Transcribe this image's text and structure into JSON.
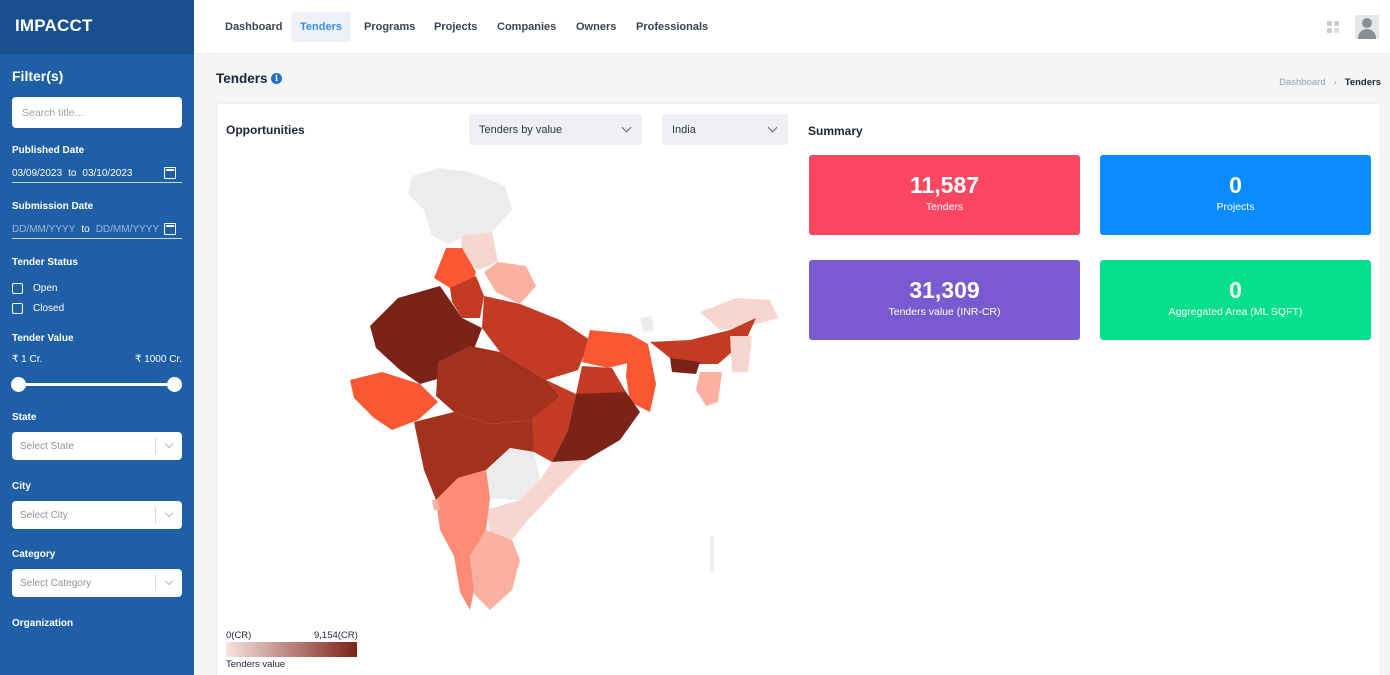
{
  "app": {
    "title": "IMPACCT"
  },
  "nav": {
    "items": [
      "Dashboard",
      "Tenders",
      "Programs",
      "Projects",
      "Companies",
      "Owners",
      "Professionals"
    ],
    "active": "Tenders"
  },
  "sidebar": {
    "heading": "Filter(s)",
    "search_placeholder": "Search title...",
    "published_date": {
      "label": "Published Date",
      "from": "03/09/2023",
      "sep": "to",
      "to": "03/10/2023"
    },
    "submission_date": {
      "label": "Submission Date",
      "from": "DD/MM/YYYY",
      "sep": "to",
      "to": "DD/MM/YYYY"
    },
    "tender_status": {
      "label": "Tender Status",
      "options": [
        "Open",
        "Closed"
      ]
    },
    "tender_value": {
      "label": "Tender Value",
      "min": "₹ 1 Cr.",
      "max": "₹ 1000 Cr.",
      "range_fraction": [
        0,
        1
      ]
    },
    "state": {
      "label": "State",
      "placeholder": "Select State"
    },
    "city": {
      "label": "City",
      "placeholder": "Select City"
    },
    "category": {
      "label": "Category",
      "placeholder": "Select Category"
    },
    "organization": {
      "label": "Organization"
    }
  },
  "page": {
    "title": "Tenders",
    "breadcrumb": {
      "parent": "Dashboard",
      "current": "Tenders"
    }
  },
  "opportunities": {
    "title": "Opportunities",
    "metric_select": "Tenders by value",
    "region_select": "India",
    "legend": {
      "min": "0(CR)",
      "max": "9,154(CR)",
      "title": "Tenders value"
    }
  },
  "summary": {
    "title": "Summary",
    "tiles": [
      {
        "value": "11,587",
        "label": "Tenders",
        "color": "#fb4661"
      },
      {
        "value": "0",
        "label": "Projects",
        "color": "#0a8cff"
      },
      {
        "value": "31,309",
        "label": "Tenders value (INR-CR)",
        "color": "#7a59d1"
      },
      {
        "value": "0",
        "label": "Aggregated Area (ML SQFT)",
        "color": "#06df8c"
      }
    ]
  },
  "colors": {
    "sidebar": "#1f5fa8",
    "brand_bar": "#1a4f8f",
    "nav_active": "#3a8ee6",
    "map_scale": [
      "#ececec",
      "#f7d6d0",
      "#fbb0a2",
      "#fd8a74",
      "#fb5733",
      "#c23b22",
      "#a4311c",
      "#7b2318"
    ]
  }
}
